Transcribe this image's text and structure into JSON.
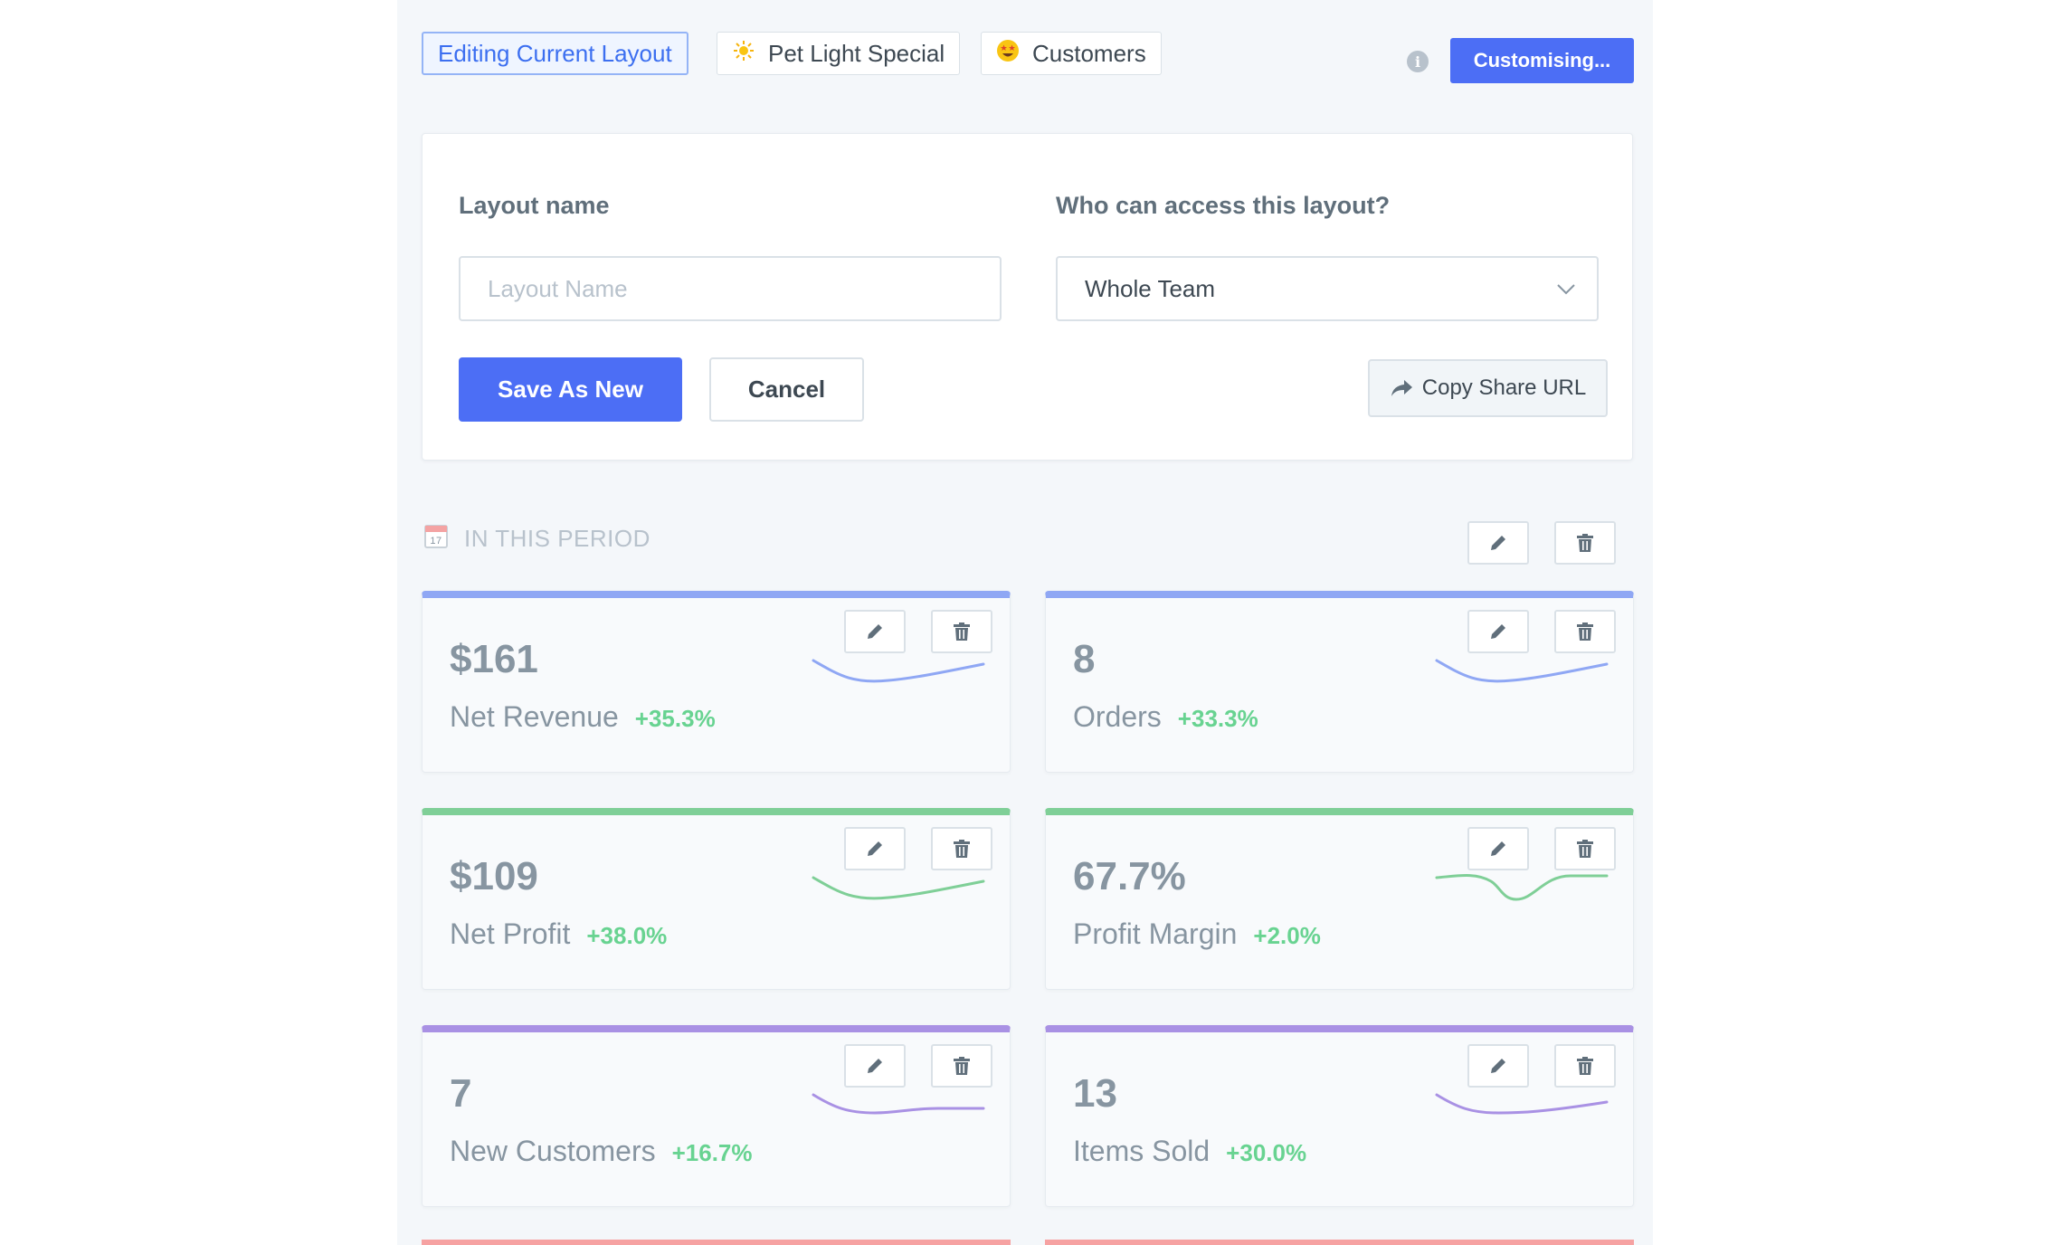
{
  "tabs": [
    {
      "label": "Editing Current Layout",
      "emoji": ""
    },
    {
      "label": "Pet Light Special",
      "emoji": "☀"
    },
    {
      "label": "Customers",
      "emoji": "☺"
    }
  ],
  "header": {
    "customise_label": "Customising..."
  },
  "form": {
    "layout_name_label": "Layout name",
    "layout_name_placeholder": "Layout Name",
    "access_label": "Who can access this layout?",
    "access_value": "Whole Team",
    "save_label": "Save As New",
    "cancel_label": "Cancel",
    "share_label": "Copy Share URL"
  },
  "section": {
    "title": "IN THIS PERIOD"
  },
  "stats": [
    {
      "value": "$161",
      "label": "Net Revenue",
      "change": "+35.3%",
      "color": "#8fa7f4"
    },
    {
      "value": "8",
      "label": "Orders",
      "change": "+33.3%",
      "color": "#8fa7f4"
    },
    {
      "value": "$109",
      "label": "Net Profit",
      "change": "+38.0%",
      "color": "#7fcf97"
    },
    {
      "value": "67.7%",
      "label": "Profit Margin",
      "change": "+2.0%",
      "color": "#7fcf97"
    },
    {
      "value": "7",
      "label": "New Customers",
      "change": "+16.7%",
      "color": "#a991e4"
    },
    {
      "value": "13",
      "label": "Items Sold",
      "change": "+30.0%",
      "color": "#a991e4"
    }
  ],
  "colors": {
    "accent": "#4c6ef5",
    "positive": "#68d391",
    "bottom_strip": "#f6a2a2"
  }
}
